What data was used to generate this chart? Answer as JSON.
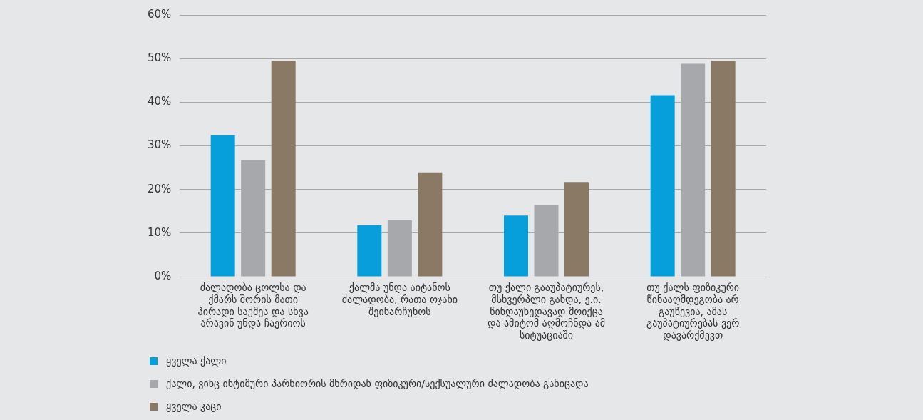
{
  "chart_data": {
    "type": "bar",
    "categories": [
      "ძალადობა ცოლსა და ქმარს შორის მათი პირადი საქმეა და სხვა არავინ უნდა ჩაერიოს",
      "ქალმა უნდა აიტანოს ძალადობა, რათა ოჯახი შეინარჩუნოს",
      "თუ ქალი გააუპატიურეს, მსხვერპლი გახდა, ე.ი. წინდაუხედავად მოიქცა და ამიტომ აღმოჩნდა ამ სიტუაციაში",
      "თუ ქალს ფიზიკური წინააღმდეგობა არ გაუწევია, ამას გაუპატიურებას ვერ დავარქმევთ"
    ],
    "series": [
      {
        "name": "ყველა ქალი",
        "color": "#069fdc",
        "values": [
          32.4,
          11.8,
          14.0,
          41.6
        ]
      },
      {
        "name": "ქალი, ვინც ინტიმური პარნიორის მხრიდან ფიზიკური/სექსუალური ძალადობა განიცადა",
        "color": "#a7a8ac",
        "values": [
          26.7,
          12.9,
          16.4,
          48.8
        ]
      },
      {
        "name": "ყველა კაცი",
        "color": "#8a7964",
        "values": [
          49.5,
          23.9,
          21.7,
          49.5
        ]
      }
    ],
    "ylim": [
      0,
      60
    ],
    "yticks": [
      {
        "value": 0,
        "label": "0%"
      },
      {
        "value": 10,
        "label": "10%"
      },
      {
        "value": 20,
        "label": "20%"
      },
      {
        "value": 30,
        "label": "30%"
      },
      {
        "value": 40,
        "label": "40%"
      },
      {
        "value": 50,
        "label": "50%"
      },
      {
        "value": 60,
        "label": "60%"
      }
    ],
    "grid": "y",
    "legend": "bottom left"
  }
}
